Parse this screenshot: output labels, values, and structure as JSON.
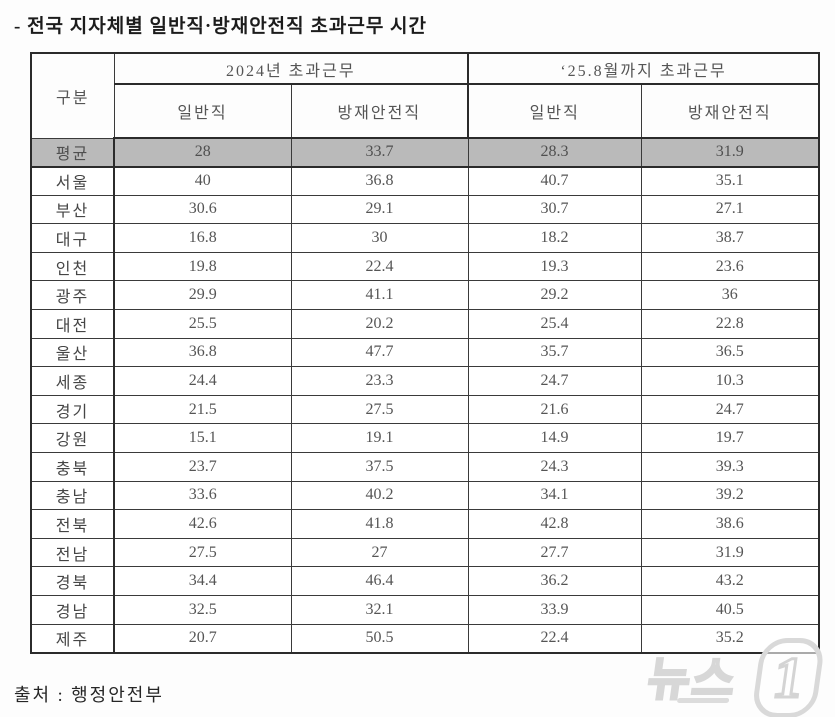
{
  "page": {
    "title": "- 전국 지자체별 일반직·방재안전직 초과근무 시간",
    "source": "출처 : 행정안전부"
  },
  "watermark": {
    "text": "뉴스",
    "numeral": "1"
  },
  "table": {
    "corner_header": "구분",
    "groups": [
      {
        "label": "2024년 초과근무",
        "sub": [
          "일반직",
          "방재안전직"
        ]
      },
      {
        "label": "‘25.8월까지 초과근무",
        "sub": [
          "일반직",
          "방재안전직"
        ]
      }
    ],
    "rows": [
      {
        "name": "평균",
        "values": [
          "28",
          "33.7",
          "28.3",
          "31.9"
        ],
        "highlight": true
      },
      {
        "name": "서울",
        "values": [
          "40",
          "36.8",
          "40.7",
          "35.1"
        ],
        "highlight": false
      },
      {
        "name": "부산",
        "values": [
          "30.6",
          "29.1",
          "30.7",
          "27.1"
        ],
        "highlight": false
      },
      {
        "name": "대구",
        "values": [
          "16.8",
          "30",
          "18.2",
          "38.7"
        ],
        "highlight": false
      },
      {
        "name": "인천",
        "values": [
          "19.8",
          "22.4",
          "19.3",
          "23.6"
        ],
        "highlight": false
      },
      {
        "name": "광주",
        "values": [
          "29.9",
          "41.1",
          "29.2",
          "36"
        ],
        "highlight": false
      },
      {
        "name": "대전",
        "values": [
          "25.5",
          "20.2",
          "25.4",
          "22.8"
        ],
        "highlight": false
      },
      {
        "name": "울산",
        "values": [
          "36.8",
          "47.7",
          "35.7",
          "36.5"
        ],
        "highlight": false
      },
      {
        "name": "세종",
        "values": [
          "24.4",
          "23.3",
          "24.7",
          "10.3"
        ],
        "highlight": false
      },
      {
        "name": "경기",
        "values": [
          "21.5",
          "27.5",
          "21.6",
          "24.7"
        ],
        "highlight": false
      },
      {
        "name": "강원",
        "values": [
          "15.1",
          "19.1",
          "14.9",
          "19.7"
        ],
        "highlight": false
      },
      {
        "name": "충북",
        "values": [
          "23.7",
          "37.5",
          "24.3",
          "39.3"
        ],
        "highlight": false
      },
      {
        "name": "충남",
        "values": [
          "33.6",
          "40.2",
          "34.1",
          "39.2"
        ],
        "highlight": false
      },
      {
        "name": "전북",
        "values": [
          "42.6",
          "41.8",
          "42.8",
          "38.6"
        ],
        "highlight": false
      },
      {
        "name": "전남",
        "values": [
          "27.5",
          "27",
          "27.7",
          "31.9"
        ],
        "highlight": false
      },
      {
        "name": "경북",
        "values": [
          "34.4",
          "46.4",
          "36.2",
          "43.2"
        ],
        "highlight": false
      },
      {
        "name": "경남",
        "values": [
          "32.5",
          "32.1",
          "33.9",
          "40.5"
        ],
        "highlight": false
      },
      {
        "name": "제주",
        "values": [
          "20.7",
          "50.5",
          "22.4",
          "35.2"
        ],
        "highlight": false
      }
    ]
  },
  "chart_data": {
    "type": "table",
    "title": "전국 지자체별 일반직·방재안전직 초과근무 시간",
    "columns": [
      "구분",
      "2024년 초과근무 일반직",
      "2024년 초과근무 방재안전직",
      "‘25.8월까지 초과근무 일반직",
      "‘25.8월까지 초과근무 방재안전직"
    ],
    "rows": [
      [
        "평균",
        28,
        33.7,
        28.3,
        31.9
      ],
      [
        "서울",
        40,
        36.8,
        40.7,
        35.1
      ],
      [
        "부산",
        30.6,
        29.1,
        30.7,
        27.1
      ],
      [
        "대구",
        16.8,
        30,
        18.2,
        38.7
      ],
      [
        "인천",
        19.8,
        22.4,
        19.3,
        23.6
      ],
      [
        "광주",
        29.9,
        41.1,
        29.2,
        36
      ],
      [
        "대전",
        25.5,
        20.2,
        25.4,
        22.8
      ],
      [
        "울산",
        36.8,
        47.7,
        35.7,
        36.5
      ],
      [
        "세종",
        24.4,
        23.3,
        24.7,
        10.3
      ],
      [
        "경기",
        21.5,
        27.5,
        21.6,
        24.7
      ],
      [
        "강원",
        15.1,
        19.1,
        14.9,
        19.7
      ],
      [
        "충북",
        23.7,
        37.5,
        24.3,
        39.3
      ],
      [
        "충남",
        33.6,
        40.2,
        34.1,
        39.2
      ],
      [
        "전북",
        42.6,
        41.8,
        42.8,
        38.6
      ],
      [
        "전남",
        27.5,
        27,
        27.7,
        31.9
      ],
      [
        "경북",
        34.4,
        46.4,
        36.2,
        43.2
      ],
      [
        "경남",
        32.5,
        32.1,
        33.9,
        40.5
      ],
      [
        "제주",
        20.7,
        50.5,
        22.4,
        35.2
      ]
    ],
    "source": "출처 : 행정안전부",
    "highlight_row": "평균"
  },
  "colors": {
    "highlight_row_bg": "#bababa",
    "border": "#2b2b2b",
    "text": "#555555",
    "watermark": "#d7d7d7"
  }
}
